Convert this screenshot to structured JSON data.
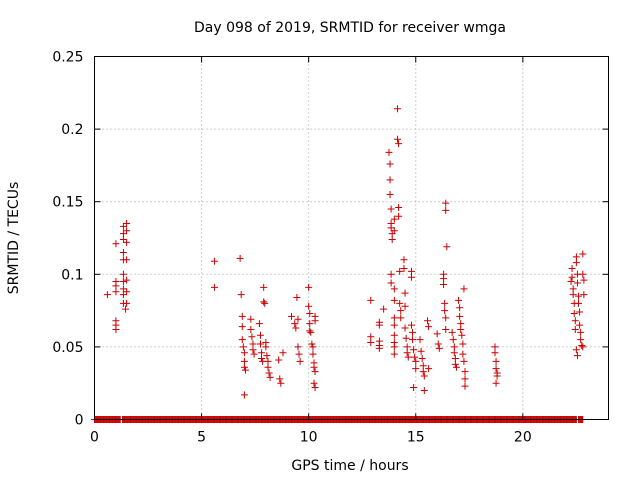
{
  "chart_data": {
    "type": "scatter",
    "title": "Day 098 of 2019, SRMTID for receiver wmga",
    "xlabel": "GPS time / hours",
    "ylabel": "SRMTID / TECUs",
    "xlim": [
      0,
      24
    ],
    "ylim": [
      0,
      0.25
    ],
    "xticks": [
      0,
      5,
      10,
      15,
      20
    ],
    "xtick_labels": [
      "0",
      "5",
      "10",
      "15",
      "20"
    ],
    "yticks": [
      0,
      0.05,
      0.1,
      0.15,
      0.2,
      0.25
    ],
    "ytick_labels": [
      "0",
      "0.05",
      "0.1",
      "0.15",
      "0.2",
      "0.25"
    ],
    "grid": true,
    "marker": "+",
    "series": [
      {
        "name": "SRMTID",
        "color": "#cc0000",
        "points": [
          [
            0.6,
            0.086
          ],
          [
            1.0,
            0.121
          ],
          [
            1.0,
            0.095
          ],
          [
            1.0,
            0.092
          ],
          [
            1.0,
            0.088
          ],
          [
            1.0,
            0.068
          ],
          [
            1.0,
            0.065
          ],
          [
            1.0,
            0.062
          ],
          [
            1.35,
            0.133
          ],
          [
            1.35,
            0.128
          ],
          [
            1.35,
            0.124
          ],
          [
            1.35,
            0.115
          ],
          [
            1.35,
            0.11
          ],
          [
            1.35,
            0.1
          ],
          [
            1.35,
            0.095
          ],
          [
            1.35,
            0.09
          ],
          [
            1.35,
            0.086
          ],
          [
            1.35,
            0.08
          ],
          [
            1.5,
            0.135
          ],
          [
            1.5,
            0.13
          ],
          [
            1.5,
            0.122
          ],
          [
            1.5,
            0.11
          ],
          [
            1.5,
            0.096
          ],
          [
            1.5,
            0.088
          ],
          [
            1.5,
            0.08
          ],
          [
            1.45,
            0.076
          ],
          [
            5.6,
            0.109
          ],
          [
            5.6,
            0.091
          ],
          [
            6.8,
            0.111
          ],
          [
            6.85,
            0.086
          ],
          [
            6.9,
            0.071
          ],
          [
            6.9,
            0.064
          ],
          [
            6.9,
            0.055
          ],
          [
            6.95,
            0.05
          ],
          [
            7.0,
            0.046
          ],
          [
            7.0,
            0.04
          ],
          [
            7.0,
            0.036
          ],
          [
            7.05,
            0.034
          ],
          [
            7.0,
            0.017
          ],
          [
            7.3,
            0.069
          ],
          [
            7.3,
            0.062
          ],
          [
            7.35,
            0.057
          ],
          [
            7.4,
            0.052
          ],
          [
            7.4,
            0.048
          ],
          [
            7.45,
            0.045
          ],
          [
            7.7,
            0.066
          ],
          [
            7.75,
            0.058
          ],
          [
            7.75,
            0.052
          ],
          [
            7.8,
            0.046
          ],
          [
            7.8,
            0.042
          ],
          [
            7.85,
            0.04
          ],
          [
            7.9,
            0.091
          ],
          [
            7.9,
            0.081
          ],
          [
            7.95,
            0.08
          ],
          [
            8.0,
            0.053
          ],
          [
            8.0,
            0.05
          ],
          [
            8.05,
            0.044
          ],
          [
            8.1,
            0.04
          ],
          [
            8.1,
            0.036
          ],
          [
            8.15,
            0.032
          ],
          [
            8.2,
            0.029
          ],
          [
            8.6,
            0.041
          ],
          [
            8.65,
            0.028
          ],
          [
            8.7,
            0.025
          ],
          [
            8.8,
            0.046
          ],
          [
            9.2,
            0.071
          ],
          [
            9.35,
            0.066
          ],
          [
            9.4,
            0.063
          ],
          [
            9.45,
            0.084
          ],
          [
            9.5,
            0.069
          ],
          [
            9.5,
            0.05
          ],
          [
            9.55,
            0.045
          ],
          [
            9.6,
            0.04
          ],
          [
            10.0,
            0.091
          ],
          [
            10.0,
            0.078
          ],
          [
            10.05,
            0.073
          ],
          [
            10.05,
            0.066
          ],
          [
            10.05,
            0.061
          ],
          [
            10.1,
            0.06
          ],
          [
            10.15,
            0.052
          ],
          [
            10.2,
            0.05
          ],
          [
            10.2,
            0.045
          ],
          [
            10.25,
            0.039
          ],
          [
            10.25,
            0.036
          ],
          [
            10.3,
            0.071
          ],
          [
            10.3,
            0.068
          ],
          [
            10.3,
            0.033
          ],
          [
            10.25,
            0.025
          ],
          [
            10.3,
            0.022
          ],
          [
            12.9,
            0.082
          ],
          [
            12.9,
            0.057
          ],
          [
            12.9,
            0.053
          ],
          [
            13.3,
            0.067
          ],
          [
            13.3,
            0.065
          ],
          [
            13.3,
            0.054
          ],
          [
            13.3,
            0.051
          ],
          [
            13.3,
            0.049
          ],
          [
            13.5,
            0.076
          ],
          [
            13.75,
            0.184
          ],
          [
            13.8,
            0.176
          ],
          [
            13.8,
            0.165
          ],
          [
            13.8,
            0.155
          ],
          [
            13.85,
            0.145
          ],
          [
            13.85,
            0.135
          ],
          [
            13.85,
            0.132
          ],
          [
            13.9,
            0.128
          ],
          [
            13.9,
            0.124
          ],
          [
            13.85,
            0.1
          ],
          [
            13.85,
            0.094
          ],
          [
            14.0,
            0.138
          ],
          [
            14.0,
            0.13
          ],
          [
            14.0,
            0.09
          ],
          [
            14.0,
            0.082
          ],
          [
            14.0,
            0.07
          ],
          [
            14.0,
            0.065
          ],
          [
            14.0,
            0.058
          ],
          [
            14.0,
            0.053
          ],
          [
            14.0,
            0.05
          ],
          [
            14.0,
            0.045
          ],
          [
            14.15,
            0.214
          ],
          [
            14.15,
            0.193
          ],
          [
            14.2,
            0.19
          ],
          [
            14.2,
            0.146
          ],
          [
            14.2,
            0.14
          ],
          [
            14.25,
            0.102
          ],
          [
            14.25,
            0.08
          ],
          [
            14.3,
            0.075
          ],
          [
            14.3,
            0.07
          ],
          [
            14.45,
            0.11
          ],
          [
            14.45,
            0.104
          ],
          [
            14.5,
            0.087
          ],
          [
            14.5,
            0.078
          ],
          [
            14.5,
            0.063
          ],
          [
            14.55,
            0.056
          ],
          [
            14.6,
            0.05
          ],
          [
            14.6,
            0.046
          ],
          [
            14.65,
            0.043
          ],
          [
            14.8,
            0.102
          ],
          [
            14.8,
            0.098
          ],
          [
            14.8,
            0.065
          ],
          [
            14.85,
            0.06
          ],
          [
            14.85,
            0.055
          ],
          [
            14.9,
            0.048
          ],
          [
            14.95,
            0.043
          ],
          [
            15.0,
            0.04
          ],
          [
            14.9,
            0.022
          ],
          [
            15.0,
            0.035
          ],
          [
            15.2,
            0.055
          ],
          [
            15.25,
            0.047
          ],
          [
            15.3,
            0.042
          ],
          [
            15.35,
            0.037
          ],
          [
            15.35,
            0.033
          ],
          [
            15.4,
            0.03
          ],
          [
            15.4,
            0.02
          ],
          [
            15.55,
            0.068
          ],
          [
            15.6,
            0.064
          ],
          [
            15.6,
            0.035
          ],
          [
            16.0,
            0.059
          ],
          [
            16.05,
            0.052
          ],
          [
            16.1,
            0.049
          ],
          [
            16.3,
            0.1
          ],
          [
            16.3,
            0.097
          ],
          [
            16.3,
            0.093
          ],
          [
            16.35,
            0.08
          ],
          [
            16.35,
            0.075
          ],
          [
            16.4,
            0.07
          ],
          [
            16.4,
            0.062
          ],
          [
            16.4,
            0.149
          ],
          [
            16.4,
            0.144
          ],
          [
            16.45,
            0.119
          ],
          [
            16.7,
            0.06
          ],
          [
            16.75,
            0.055
          ],
          [
            16.8,
            0.05
          ],
          [
            16.8,
            0.046
          ],
          [
            16.85,
            0.042
          ],
          [
            16.85,
            0.038
          ],
          [
            16.9,
            0.036
          ],
          [
            17.0,
            0.082
          ],
          [
            17.05,
            0.077
          ],
          [
            17.05,
            0.071
          ],
          [
            17.1,
            0.066
          ],
          [
            17.1,
            0.062
          ],
          [
            17.15,
            0.058
          ],
          [
            17.2,
            0.052
          ],
          [
            17.2,
            0.045
          ],
          [
            17.25,
            0.04
          ],
          [
            17.3,
            0.033
          ],
          [
            17.3,
            0.028
          ],
          [
            17.3,
            0.023
          ],
          [
            17.25,
            0.09
          ],
          [
            18.7,
            0.05
          ],
          [
            18.7,
            0.046
          ],
          [
            18.75,
            0.04
          ],
          [
            18.75,
            0.035
          ],
          [
            18.8,
            0.032
          ],
          [
            18.8,
            0.03
          ],
          [
            18.75,
            0.025
          ],
          [
            22.25,
            0.095
          ],
          [
            22.3,
            0.104
          ],
          [
            22.3,
            0.098
          ],
          [
            22.35,
            0.09
          ],
          [
            22.35,
            0.086
          ],
          [
            22.4,
            0.08
          ],
          [
            22.4,
            0.073
          ],
          [
            22.45,
            0.068
          ],
          [
            22.45,
            0.062
          ],
          [
            22.5,
            0.112
          ],
          [
            22.5,
            0.108
          ],
          [
            22.55,
            0.1
          ],
          [
            22.55,
            0.094
          ],
          [
            22.6,
            0.085
          ],
          [
            22.6,
            0.08
          ],
          [
            22.65,
            0.074
          ],
          [
            22.65,
            0.065
          ],
          [
            22.7,
            0.06
          ],
          [
            22.7,
            0.055
          ],
          [
            22.75,
            0.051
          ],
          [
            22.5,
            0.048
          ],
          [
            22.55,
            0.044
          ],
          [
            22.8,
            0.114
          ],
          [
            22.8,
            0.1
          ],
          [
            22.85,
            0.096
          ],
          [
            22.85,
            0.086
          ],
          [
            22.8,
            0.05
          ]
        ],
        "baseline_zero_ranges": [
          [
            0.0,
            1.2
          ],
          [
            1.3,
            22.5
          ],
          [
            22.6,
            22.8
          ]
        ]
      }
    ]
  }
}
